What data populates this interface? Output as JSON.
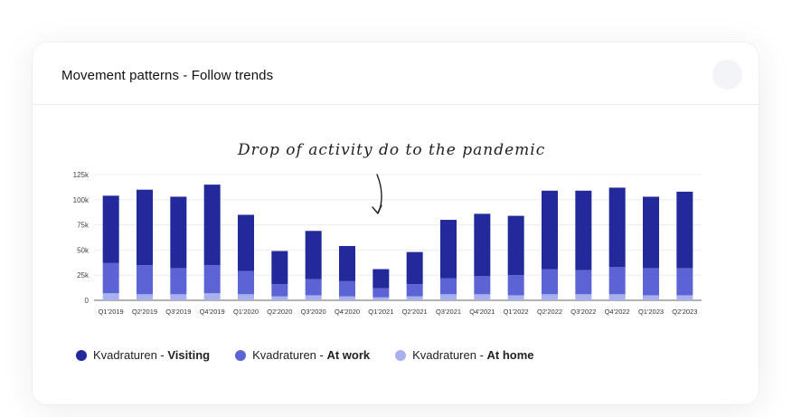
{
  "card": {
    "title": "Movement patterns - Follow trends",
    "menu_icon": "menu-circle-icon"
  },
  "chart_data": {
    "type": "bar",
    "stacked": true,
    "title": "",
    "xlabel": "",
    "ylabel": "",
    "ylim": [
      0,
      125000
    ],
    "yticks": [
      "0",
      "25k",
      "50k",
      "75k",
      "100k",
      "125k"
    ],
    "grid": true,
    "legend_position": "bottom-left",
    "annotation": "Drop of activity do to the pandemic",
    "categories": [
      "Q1'2019",
      "Q2'2019",
      "Q3'2019",
      "Q4'2019",
      "Q1'2020",
      "Q2'2020",
      "Q3'2020",
      "Q4'2020",
      "Q1'2021",
      "Q2'2021",
      "Q3'2021",
      "Q4'2021",
      "Q1'2022",
      "Q2'2022",
      "Q3'2022",
      "Q4'2022",
      "Q1'2023",
      "Q2'2023"
    ],
    "series": [
      {
        "name": "Kvadraturen - At home",
        "color": "#a9b0ee",
        "values": [
          7000,
          6000,
          6000,
          7000,
          6000,
          4000,
          5000,
          4000,
          3000,
          4000,
          6000,
          6000,
          5000,
          6000,
          6000,
          6000,
          5000,
          5000
        ]
      },
      {
        "name": "Kvadraturen - At work",
        "color": "#5c63d4",
        "values": [
          30000,
          29000,
          26000,
          28000,
          23000,
          12000,
          16000,
          15000,
          9000,
          12000,
          16000,
          18000,
          20000,
          25000,
          24000,
          27000,
          27000,
          27000
        ]
      },
      {
        "name": "Kvadraturen - Visiting",
        "color": "#23299a",
        "values": [
          67000,
          75000,
          71000,
          80000,
          56000,
          33000,
          48000,
          35000,
          19000,
          32000,
          58000,
          62000,
          59000,
          78000,
          79000,
          79000,
          71000,
          76000
        ]
      }
    ]
  },
  "legend": [
    {
      "prefix": "Kvadraturen - ",
      "bold": "Visiting",
      "color": "#23299a"
    },
    {
      "prefix": "Kvadraturen - ",
      "bold": "At work",
      "color": "#5c63d4"
    },
    {
      "prefix": "Kvadraturen - ",
      "bold": "At home",
      "color": "#a9b0ee"
    }
  ]
}
